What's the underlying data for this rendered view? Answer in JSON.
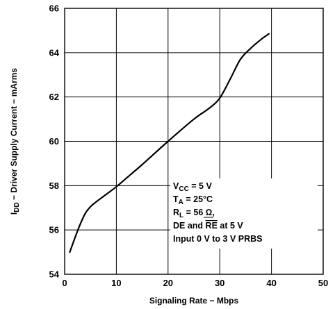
{
  "chart_data": {
    "type": "line",
    "title": "",
    "xlabel": "Signaling Rate − Mbps",
    "ylabel": {
      "prefix": "I",
      "sub": "DD",
      "rest": " − Driver Supply Current − mArms"
    },
    "xlim": [
      0,
      50
    ],
    "ylim": [
      54,
      66
    ],
    "xticks": [
      0,
      10,
      20,
      30,
      40,
      50
    ],
    "yticks": [
      54,
      56,
      58,
      60,
      62,
      64,
      66
    ],
    "grid": true,
    "series": [
      {
        "x": [
          1,
          2,
          3,
          4,
          5,
          6,
          8,
          10,
          12,
          15,
          20,
          25,
          28,
          30,
          32,
          34,
          36,
          38,
          39.5
        ],
        "y": [
          55.0,
          55.65,
          56.25,
          56.75,
          57.05,
          57.25,
          57.6,
          57.95,
          58.35,
          58.95,
          60.0,
          61.0,
          61.5,
          61.95,
          62.8,
          63.7,
          64.2,
          64.6,
          64.85
        ]
      }
    ],
    "annotations": [
      {
        "main": "V",
        "sub": "CC",
        "rest": " = 5 V"
      },
      {
        "main": "T",
        "sub": "A",
        "rest": " = 25°C"
      },
      {
        "main": "R",
        "sub": "L",
        "rest": " = 56 Ω,"
      },
      {
        "main": "DE and ",
        "overline": "RE",
        "rest": " at 5 V"
      },
      {
        "main": "Input 0 V to 3 V PRBS"
      }
    ]
  }
}
